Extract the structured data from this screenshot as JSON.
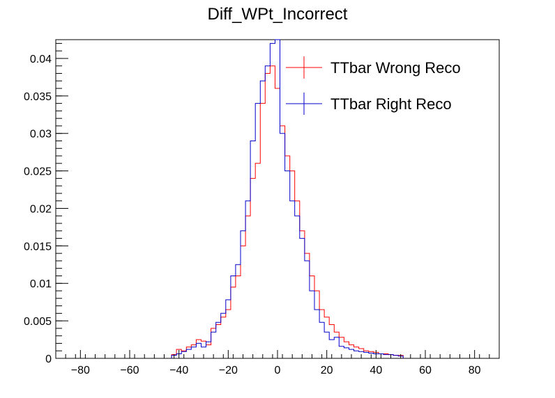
{
  "chart_data": {
    "type": "line",
    "title": "Diff_WPt_Incorrect",
    "xlabel": "",
    "ylabel": "",
    "xlim": [
      -90,
      90
    ],
    "ylim": [
      0,
      0.0425
    ],
    "x_ticks": [
      -80,
      -60,
      -40,
      -20,
      0,
      20,
      40,
      60,
      80
    ],
    "y_ticks": [
      0,
      0.005,
      0.01,
      0.015,
      0.02,
      0.025,
      0.03,
      0.035,
      0.04
    ],
    "x_tick_labels": [
      "−80",
      "−60",
      "−40",
      "−20",
      "0",
      "20",
      "40",
      "60",
      "80"
    ],
    "y_tick_labels": [
      "0",
      "0.005",
      "0.01",
      "0.015",
      "0.02",
      "0.025",
      "0.03",
      "0.035",
      "0.04"
    ],
    "grid": false,
    "legend": "top-right",
    "series": [
      {
        "name": "TTbar Wrong Reco",
        "color": "#ff0000",
        "bin_centers": [
          -42,
          -40,
          -38,
          -36,
          -34,
          -32,
          -30,
          -28,
          -26,
          -24,
          -22,
          -20,
          -18,
          -16,
          -14,
          -12,
          -10,
          -8,
          -6,
          -4,
          -2,
          0,
          2,
          4,
          6,
          8,
          10,
          12,
          14,
          16,
          18,
          20,
          22,
          24,
          26,
          28,
          30,
          32,
          34,
          36,
          38,
          40,
          42,
          44,
          46,
          48,
          50
        ],
        "values": [
          0.0005,
          0.0012,
          0.001,
          0.0015,
          0.0018,
          0.0025,
          0.0023,
          0.0018,
          0.004,
          0.0045,
          0.0055,
          0.0065,
          0.0095,
          0.011,
          0.015,
          0.019,
          0.024,
          0.026,
          0.034,
          0.038,
          0.039,
          0.036,
          0.031,
          0.027,
          0.025,
          0.021,
          0.017,
          0.014,
          0.011,
          0.009,
          0.0065,
          0.0055,
          0.0045,
          0.0035,
          0.0028,
          0.0022,
          0.0018,
          0.0015,
          0.0013,
          0.001,
          0.0009,
          0.0008,
          0.0006,
          0.0006,
          0.0005,
          0.0004,
          0.0004
        ]
      },
      {
        "name": "TTbar Right Reco",
        "color": "#0000cc",
        "bin_centers": [
          -42,
          -40,
          -38,
          -36,
          -34,
          -32,
          -30,
          -28,
          -26,
          -24,
          -22,
          -20,
          -18,
          -16,
          -14,
          -12,
          -10,
          -8,
          -6,
          -4,
          -2,
          0,
          2,
          4,
          6,
          8,
          10,
          12,
          14,
          16,
          18,
          20,
          22,
          24,
          26,
          28,
          30,
          32,
          34,
          36,
          38,
          40,
          42,
          44,
          46,
          48,
          50
        ],
        "values": [
          0.0004,
          0.0006,
          0.0009,
          0.0012,
          0.0015,
          0.002,
          0.0015,
          0.0022,
          0.0035,
          0.0048,
          0.006,
          0.0078,
          0.011,
          0.0125,
          0.017,
          0.021,
          0.029,
          0.034,
          0.037,
          0.039,
          0.042,
          0.044,
          0.03,
          0.025,
          0.021,
          0.019,
          0.016,
          0.013,
          0.009,
          0.0065,
          0.0048,
          0.0035,
          0.0025,
          0.0028,
          0.0016,
          0.0014,
          0.0012,
          0.001,
          0.0009,
          0.0008,
          0.0007,
          0.0006,
          0.0006,
          0.0005,
          0.0005,
          0.0004,
          0.0003
        ]
      }
    ]
  }
}
